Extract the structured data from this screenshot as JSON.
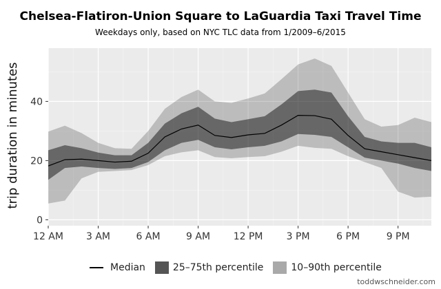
{
  "chart_data": {
    "type": "area",
    "title": "Chelsea-Flatiron-Union Square to LaGuardia Taxi Travel Time",
    "subtitle": "Weekdays only, based on NYC TLC data from 1/2009–6/2015",
    "xlabel": "",
    "ylabel": "trip duration in minutes",
    "ylim": [
      -2,
      58
    ],
    "xlim": [
      0,
      23
    ],
    "yticks": [
      0,
      20,
      40
    ],
    "xticks": [
      {
        "x": 0,
        "label": "12 AM"
      },
      {
        "x": 3,
        "label": "3 AM"
      },
      {
        "x": 6,
        "label": "6 AM"
      },
      {
        "x": 9,
        "label": "9 AM"
      },
      {
        "x": 12,
        "label": "12 PM"
      },
      {
        "x": 15,
        "label": "3 PM"
      },
      {
        "x": 18,
        "label": "6 PM"
      },
      {
        "x": 21,
        "label": "9 PM"
      }
    ],
    "grid": true,
    "legend_position": "bottom",
    "x": [
      0,
      1,
      2,
      3,
      4,
      5,
      6,
      7,
      8,
      9,
      10,
      11,
      12,
      13,
      14,
      15,
      16,
      17,
      18,
      19,
      20,
      21,
      22,
      23
    ],
    "series": [
      {
        "name": "Median",
        "kind": "line",
        "color": "#000000",
        "values": [
          18.2,
          20.3,
          20.5,
          20.0,
          19.5,
          19.8,
          22.5,
          28.0,
          30.7,
          32.0,
          28.5,
          27.8,
          28.7,
          29.2,
          32.0,
          35.3,
          35.2,
          34.0,
          28.5,
          24.0,
          23.0,
          22.0,
          21.0,
          20.0
        ]
      },
      {
        "name": "25–75th percentile",
        "kind": "band",
        "color": "#555555",
        "lower": [
          13.5,
          17.5,
          18.0,
          17.5,
          17.2,
          17.5,
          19.5,
          23.5,
          26.0,
          27.0,
          24.5,
          23.8,
          24.5,
          25.0,
          26.5,
          29.0,
          28.7,
          28.0,
          24.5,
          21.0,
          20.0,
          19.0,
          17.5,
          16.5
        ],
        "upper": [
          23.5,
          25.2,
          24.2,
          22.7,
          21.8,
          21.8,
          26.0,
          32.5,
          36.0,
          38.2,
          34.2,
          33.0,
          34.0,
          35.0,
          39.0,
          43.5,
          44.0,
          43.0,
          35.0,
          28.0,
          26.5,
          26.0,
          26.0,
          24.5
        ]
      },
      {
        "name": "10–90th percentile",
        "kind": "band",
        "color": "#c3c3c3",
        "lower": [
          5.5,
          6.5,
          14.0,
          16.2,
          16.5,
          16.8,
          18.5,
          21.5,
          22.8,
          23.5,
          21.2,
          20.8,
          21.2,
          21.5,
          23.0,
          25.0,
          24.3,
          24.0,
          21.5,
          19.5,
          17.5,
          9.5,
          7.5,
          7.8
        ],
        "upper": [
          29.8,
          31.8,
          29.3,
          26.0,
          24.2,
          24.0,
          30.0,
          37.5,
          41.5,
          44.0,
          40.0,
          39.5,
          41.0,
          42.7,
          47.5,
          52.5,
          54.5,
          52.0,
          43.0,
          34.0,
          31.5,
          32.0,
          34.5,
          33.0
        ]
      }
    ]
  },
  "legend": {
    "median_label": "Median",
    "iqr_label": "25–75th percentile",
    "p10_90_label": "10–90th percentile"
  },
  "colors": {
    "panel_bg": "#ebebeb",
    "grid_major": "#ffffff",
    "iqr_band": "#555555",
    "outer_band": "#c3c3c3"
  },
  "credit": "toddwschneider.com"
}
